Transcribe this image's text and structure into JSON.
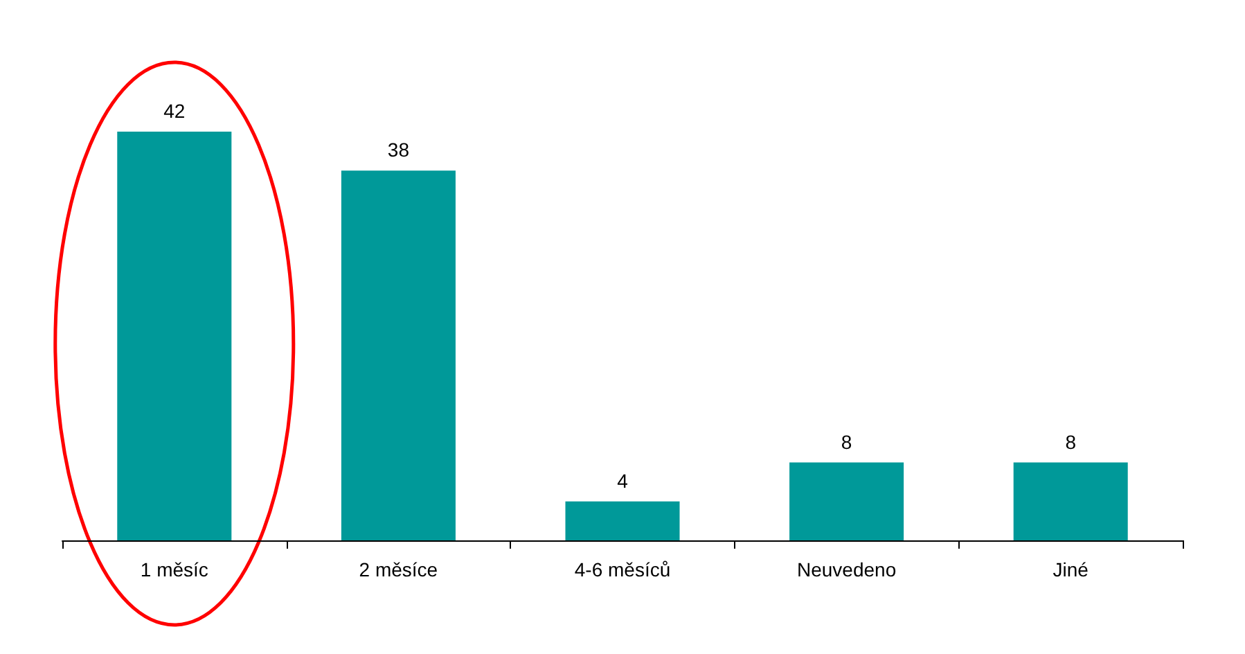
{
  "chart_data": {
    "type": "bar",
    "categories": [
      "1 měsíc",
      "2 měsíce",
      "4-6 měsíců",
      "Neuvedeno",
      "Jiné"
    ],
    "values": [
      42,
      38,
      4,
      8,
      8
    ],
    "color": "#009999",
    "data_labels": true
  }
}
